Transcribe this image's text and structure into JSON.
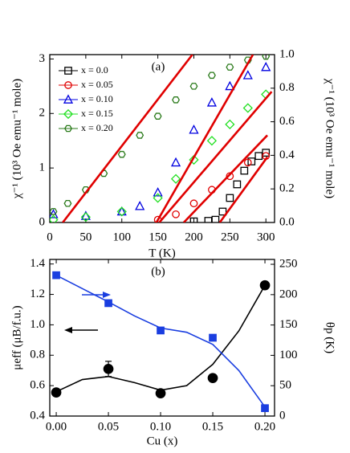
{
  "chart_data": [
    {
      "type": "scatter",
      "annotation": "(a)",
      "xlabel": "T (K)",
      "ylabel": "χ⁻¹ (10³ Oe emu⁻¹ mole)",
      "y2label": "χ⁻¹ (10³ Oe emu⁻¹ mole)",
      "xlim": [
        0,
        312
      ],
      "ylim": [
        0,
        3.08
      ],
      "y2lim": [
        0,
        1.0
      ],
      "xticks": [
        0,
        50,
        100,
        150,
        200,
        250,
        300
      ],
      "yticks": [
        0,
        1,
        2,
        3
      ],
      "y2ticks": [
        {
          "value": 0,
          "label": "0.0"
        },
        0.2,
        0.4,
        0.6,
        0.8,
        {
          "value": 1,
          "label": "1.0"
        }
      ],
      "legend": "top-left",
      "filled": false,
      "series": [
        {
          "name": "x = 0.0",
          "color": "#000000",
          "marker": "square",
          "x": [
            200,
            220,
            230,
            240,
            250,
            260,
            270,
            280,
            290,
            300
          ],
          "values": [
            0.02,
            0.03,
            0.05,
            0.2,
            0.45,
            0.7,
            0.95,
            1.12,
            1.22,
            1.28
          ]
        },
        {
          "name": "x = 0.05",
          "color": "#e00000",
          "marker": "circle",
          "x": [
            150,
            175,
            200,
            225,
            250,
            275,
            300
          ],
          "values": [
            0.05,
            0.15,
            0.35,
            0.6,
            0.85,
            1.1,
            1.22
          ]
        },
        {
          "name": "x = 0.10",
          "color": "#0000e0",
          "marker": "triangle",
          "x": [
            5,
            50,
            100,
            125,
            150,
            175,
            200,
            225,
            250,
            275,
            300
          ],
          "values": [
            0.15,
            0.12,
            0.2,
            0.3,
            0.55,
            1.1,
            1.7,
            2.2,
            2.5,
            2.7,
            2.85
          ]
        },
        {
          "name": "x = 0.15",
          "color": "#22e022",
          "marker": "diamond",
          "x": [
            5,
            50,
            100,
            150,
            175,
            200,
            225,
            250,
            275,
            300
          ],
          "values": [
            0.05,
            0.1,
            0.2,
            0.45,
            0.8,
            1.15,
            1.5,
            1.8,
            2.1,
            2.35
          ]
        },
        {
          "name": "x = 0.20",
          "color": "#2a7a1a",
          "marker": "hexagon",
          "x": [
            5,
            25,
            50,
            75,
            100,
            125,
            150,
            175,
            200,
            225,
            250,
            275,
            300
          ],
          "values": [
            0.2,
            0.35,
            0.6,
            0.9,
            1.25,
            1.6,
            1.95,
            2.25,
            2.5,
            2.7,
            2.85,
            2.98,
            3.05
          ]
        }
      ],
      "fits": [
        {
          "color": "#e00000",
          "x": [
            18,
            198
          ],
          "values": [
            0,
            3.08
          ]
        },
        {
          "color": "#e00000",
          "x": [
            148,
            282
          ],
          "values": [
            0,
            3.08
          ]
        },
        {
          "color": "#e00000",
          "x": [
            152,
            308
          ],
          "values": [
            0,
            2.4
          ]
        },
        {
          "color": "#e00000",
          "x": [
            186,
            302
          ],
          "values": [
            0,
            1.6
          ]
        },
        {
          "color": "#e00000",
          "x": [
            236,
            302
          ],
          "values": [
            0,
            1.2
          ]
        }
      ]
    },
    {
      "type": "scatter",
      "annotation": "(b)",
      "xlabel": "Cu (x)",
      "ylabel": "μeff (μB/f.u.)",
      "y2label": "θp (K)",
      "xlim": [
        -0.0062,
        0.2092
      ],
      "ylim": [
        0.4,
        1.43
      ],
      "y2lim": [
        0,
        258
      ],
      "xticks": [
        {
          "value": 0,
          "label": "0.00"
        },
        {
          "value": 0.05,
          "label": "0.05"
        },
        {
          "value": 0.1,
          "label": "0.10"
        },
        {
          "value": 0.15,
          "label": "0.15"
        },
        {
          "value": 0.2,
          "label": "0.20"
        }
      ],
      "yticks": [
        0.4,
        0.6,
        0.8,
        {
          "value": 1,
          "label": "1.0"
        },
        1.2,
        1.4
      ],
      "y2ticks": [
        0,
        50,
        100,
        150,
        200,
        250
      ],
      "filled": true,
      "series": [
        {
          "color": "#000000",
          "marker": "circle",
          "x": [
            0,
            0.05,
            0.1,
            0.15,
            0.2
          ],
          "values": [
            0.555,
            0.71,
            0.55,
            0.65,
            1.26
          ],
          "errors": [
            null,
            0.05,
            null,
            null,
            null
          ]
        },
        {
          "color": "#1a3ee0",
          "marker": "square",
          "axis": "y2",
          "x": [
            0,
            0.05,
            0.1,
            0.15,
            0.2
          ],
          "values": [
            232,
            186,
            141,
            129,
            13
          ]
        }
      ],
      "fits": [
        {
          "color": "#000000",
          "x": [
            0,
            0.025,
            0.05,
            0.075,
            0.1,
            0.125,
            0.15,
            0.175,
            0.2
          ],
          "values": [
            0.56,
            0.64,
            0.66,
            0.62,
            0.57,
            0.6,
            0.74,
            0.96,
            1.26
          ]
        },
        {
          "color": "#1a3ee0",
          "axis": "y2",
          "x": [
            0,
            0.025,
            0.05,
            0.075,
            0.1,
            0.125,
            0.15,
            0.175,
            0.2
          ],
          "values": [
            232,
            210,
            188,
            165,
            145,
            138,
            118,
            75,
            15
          ]
        }
      ]
    }
  ]
}
